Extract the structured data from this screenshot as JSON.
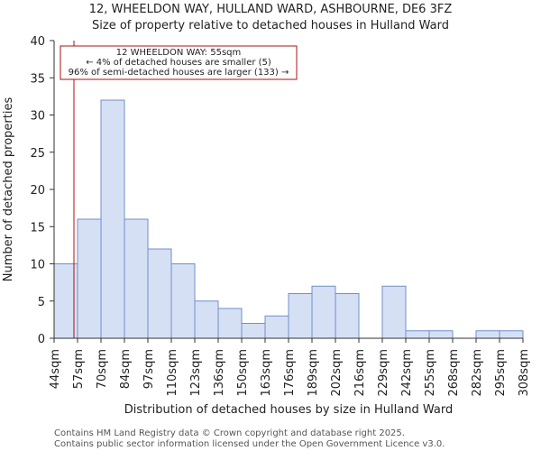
{
  "chart_data": {
    "type": "bar",
    "title": "12, WHEELDON WAY, HULLAND WARD, ASHBOURNE, DE6 3FZ",
    "subtitle": "Size of property relative to detached houses in Hulland Ward",
    "xlabel": "Distribution of detached houses by size in Hulland Ward",
    "ylabel": "Number of detached properties",
    "ylim": [
      0,
      40
    ],
    "yticks": [
      0,
      5,
      10,
      15,
      20,
      25,
      30,
      35,
      40
    ],
    "bin_edges": [
      "44sqm",
      "57sqm",
      "70sqm",
      "84sqm",
      "97sqm",
      "110sqm",
      "123sqm",
      "136sqm",
      "150sqm",
      "163sqm",
      "176sqm",
      "189sqm",
      "202sqm",
      "216sqm",
      "229sqm",
      "242sqm",
      "255sqm",
      "268sqm",
      "282sqm",
      "295sqm",
      "308sqm"
    ],
    "values": [
      10,
      16,
      32,
      16,
      12,
      10,
      5,
      4,
      2,
      3,
      6,
      7,
      6,
      0,
      7,
      1,
      1,
      0,
      1,
      1
    ],
    "marker": {
      "value_sqm": 55,
      "color": "#aa1111"
    },
    "annotation": [
      "12 WHEELDON WAY: 55sqm",
      "← 4% of detached houses are smaller (5)",
      "96% of semi-detached houses are larger (133) →"
    ],
    "bar_fill": "#d6e0f5",
    "bar_stroke": "#6f8fc9",
    "grid": false
  },
  "footer": {
    "line1": "Contains HM Land Registry data © Crown copyright and database right 2025.",
    "line2": "Contains public sector information licensed under the Open Government Licence v3.0."
  }
}
